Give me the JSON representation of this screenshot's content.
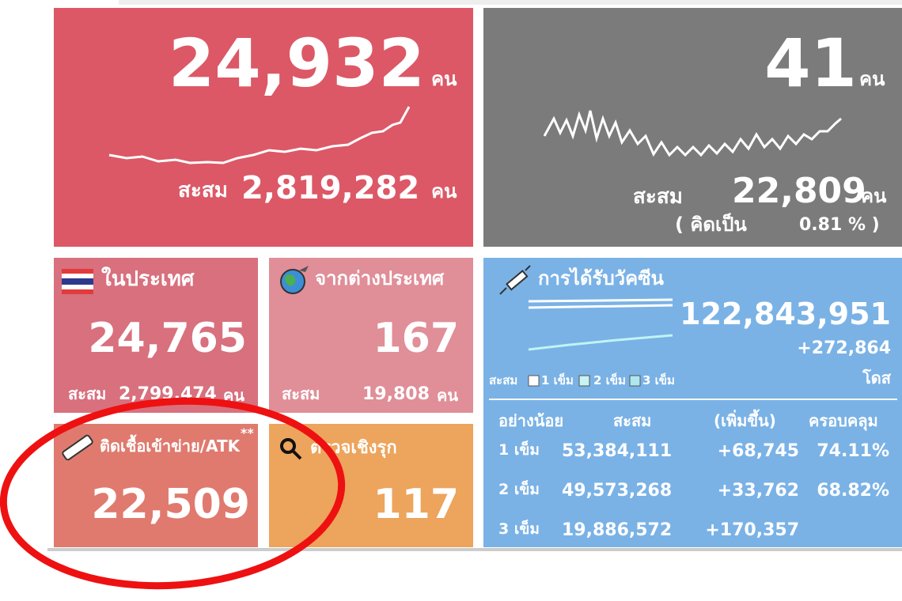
{
  "cases": {
    "today": "24,932",
    "unit": "คน",
    "cumulative_label": "สะสม",
    "cumulative": "2,819,282",
    "cumulative_unit": "คน"
  },
  "deaths": {
    "today": "41",
    "unit": "คน",
    "cumulative_label": "สะสม",
    "cumulative": "22,809",
    "cumulative_unit": "คน",
    "rate_label": "( คิดเป็น",
    "rate": "0.81 % )"
  },
  "domestic": {
    "title": "ในประเทศ",
    "today": "24,765",
    "cumulative_label": "สะสม",
    "cumulative": "2,799,474",
    "cumulative_unit": "คน"
  },
  "imported": {
    "title": "จากต่างประเทศ",
    "today": "167",
    "cumulative_label": "สะสม",
    "cumulative": "19,808",
    "cumulative_unit": "คน"
  },
  "atk": {
    "title": "ติดเชื้อเข้าข่าย/ATK",
    "note": "**",
    "today": "22,509"
  },
  "proactive": {
    "title": "ตรวจเชิงรุก",
    "today": "117"
  },
  "vaccine": {
    "title": "การได้รับวัคซีน",
    "total": "122,843,951",
    "increase": "+272,864",
    "unit": "โดส",
    "legend": {
      "label": "สะสม",
      "items": [
        "1 เข็ม",
        "2 เข็ม",
        "3 เข็ม"
      ]
    },
    "table": {
      "header": [
        "อย่างน้อย",
        "สะสม",
        "(เพิ่มขึ้น)",
        "ครอบคลุม"
      ],
      "rows": [
        [
          "1 เข็ม",
          "53,384,111",
          "+68,745",
          "74.11%"
        ],
        [
          "2 เข็ม",
          "49,573,268",
          "+33,762",
          "68.82%"
        ],
        [
          "3 เข็ม",
          "19,886,572",
          "+170,357"
        ]
      ]
    }
  }
}
